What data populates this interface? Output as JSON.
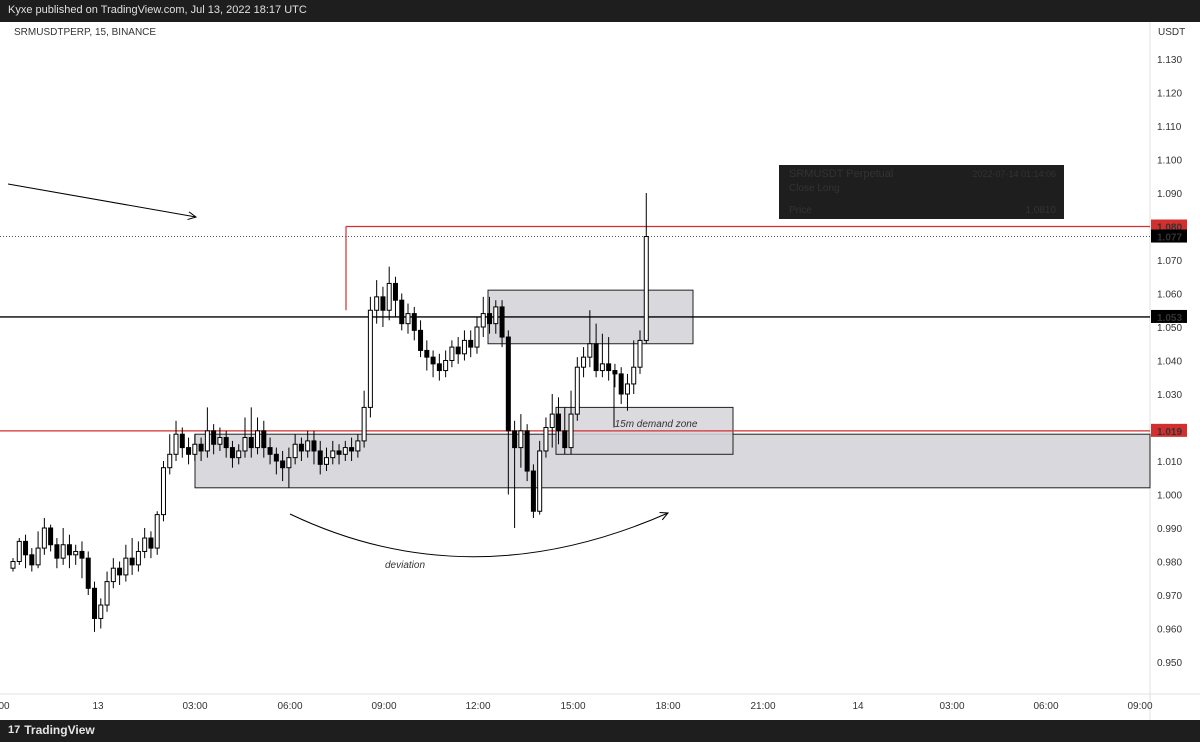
{
  "header": {
    "published": "Kyxe published on TradingView.com, Jul 13, 2022 18:17 UTC"
  },
  "footer": {
    "brand": "TradingView",
    "brand_icon": "tradingview-logo-icon"
  },
  "chart_data": {
    "type": "candlestick",
    "symbol_label": "SRMUSDTPERP, 15, BINANCE",
    "currency": "USDT",
    "ylim": [
      0.94,
      1.14
    ],
    "y_ticks": [
      "1.130",
      "1.120",
      "1.110",
      "1.100",
      "1.090",
      "1.080",
      "1.070",
      "1.060",
      "1.050",
      "1.040",
      "1.030",
      "1.020",
      "1.010",
      "1.000",
      "0.990",
      "0.980",
      "0.970",
      "0.960",
      "0.950"
    ],
    "x_ticks": [
      "00",
      "13",
      "03:00",
      "06:00",
      "09:00",
      "12:00",
      "15:00",
      "18:00",
      "21:00",
      "14",
      "03:00",
      "06:00",
      "09:00"
    ],
    "candles": [
      [
        0.978,
        0.98,
        0.977,
        0.981
      ],
      [
        0.98,
        0.986,
        0.979,
        0.987
      ],
      [
        0.986,
        0.982,
        0.978,
        0.988
      ],
      [
        0.982,
        0.979,
        0.977,
        0.984
      ],
      [
        0.979,
        0.984,
        0.978,
        0.989
      ],
      [
        0.984,
        0.99,
        0.982,
        0.993
      ],
      [
        0.99,
        0.985,
        0.983,
        0.991
      ],
      [
        0.985,
        0.981,
        0.978,
        0.987
      ],
      [
        0.981,
        0.985,
        0.979,
        0.99
      ],
      [
        0.985,
        0.982,
        0.978,
        0.988
      ],
      [
        0.982,
        0.983,
        0.979,
        0.985
      ],
      [
        0.983,
        0.981,
        0.975,
        0.986
      ],
      [
        0.981,
        0.972,
        0.97,
        0.983
      ],
      [
        0.972,
        0.963,
        0.959,
        0.974
      ],
      [
        0.963,
        0.967,
        0.96,
        0.969
      ],
      [
        0.967,
        0.974,
        0.965,
        0.977
      ],
      [
        0.974,
        0.978,
        0.972,
        0.981
      ],
      [
        0.978,
        0.976,
        0.973,
        0.98
      ],
      [
        0.976,
        0.981,
        0.974,
        0.985
      ],
      [
        0.981,
        0.979,
        0.976,
        0.987
      ],
      [
        0.979,
        0.983,
        0.977,
        0.986
      ],
      [
        0.983,
        0.987,
        0.981,
        0.99
      ],
      [
        0.987,
        0.984,
        0.981,
        0.989
      ],
      [
        0.984,
        0.994,
        0.982,
        0.995
      ],
      [
        0.994,
        1.008,
        0.992,
        1.01
      ],
      [
        1.008,
        1.012,
        1.006,
        1.018
      ],
      [
        1.012,
        1.018,
        1.01,
        1.022
      ],
      [
        1.018,
        1.014,
        1.011,
        1.02
      ],
      [
        1.014,
        1.012,
        1.009,
        1.017
      ],
      [
        1.012,
        1.015,
        1.01,
        1.018
      ],
      [
        1.015,
        1.013,
        1.01,
        1.017
      ],
      [
        1.013,
        1.019,
        1.011,
        1.026
      ],
      [
        1.019,
        1.015,
        1.012,
        1.021
      ],
      [
        1.015,
        1.017,
        1.013,
        1.02
      ],
      [
        1.017,
        1.014,
        1.011,
        1.019
      ],
      [
        1.014,
        1.011,
        1.008,
        1.016
      ],
      [
        1.011,
        1.013,
        1.009,
        1.015
      ],
      [
        1.013,
        1.017,
        1.011,
        1.023
      ],
      [
        1.017,
        1.014,
        1.011,
        1.026
      ],
      [
        1.014,
        1.019,
        1.012,
        1.023
      ],
      [
        1.019,
        1.014,
        1.011,
        1.022
      ],
      [
        1.014,
        1.012,
        1.009,
        1.017
      ],
      [
        1.012,
        1.01,
        1.006,
        1.014
      ],
      [
        1.01,
        1.008,
        1.004,
        1.013
      ],
      [
        1.008,
        1.011,
        1.002,
        1.014
      ],
      [
        1.011,
        1.015,
        1.009,
        1.018
      ],
      [
        1.015,
        1.013,
        1.01,
        1.017
      ],
      [
        1.013,
        1.016,
        1.011,
        1.019
      ],
      [
        1.016,
        1.013,
        1.009,
        1.019
      ],
      [
        1.013,
        1.009,
        1.006,
        1.016
      ],
      [
        1.009,
        1.011,
        1.007,
        1.014
      ],
      [
        1.011,
        1.013,
        1.009,
        1.016
      ],
      [
        1.013,
        1.012,
        1.009,
        1.015
      ],
      [
        1.012,
        1.014,
        1.01,
        1.016
      ],
      [
        1.014,
        1.013,
        1.01,
        1.017
      ],
      [
        1.013,
        1.016,
        1.011,
        1.018
      ],
      [
        1.016,
        1.026,
        1.014,
        1.031
      ],
      [
        1.026,
        1.055,
        1.023,
        1.059
      ],
      [
        1.055,
        1.059,
        1.051,
        1.064
      ],
      [
        1.059,
        1.055,
        1.05,
        1.062
      ],
      [
        1.055,
        1.063,
        1.052,
        1.068
      ],
      [
        1.063,
        1.058,
        1.053,
        1.065
      ],
      [
        1.058,
        1.051,
        1.049,
        1.06
      ],
      [
        1.051,
        1.054,
        1.048,
        1.057
      ],
      [
        1.054,
        1.049,
        1.046,
        1.056
      ],
      [
        1.049,
        1.043,
        1.041,
        1.052
      ],
      [
        1.043,
        1.041,
        1.037,
        1.046
      ],
      [
        1.041,
        1.039,
        1.035,
        1.043
      ],
      [
        1.039,
        1.037,
        1.034,
        1.042
      ],
      [
        1.037,
        1.04,
        1.035,
        1.043
      ],
      [
        1.04,
        1.044,
        1.038,
        1.046
      ],
      [
        1.044,
        1.042,
        1.039,
        1.047
      ],
      [
        1.042,
        1.046,
        1.04,
        1.049
      ],
      [
        1.046,
        1.044,
        1.041,
        1.049
      ],
      [
        1.044,
        1.05,
        1.042,
        1.053
      ],
      [
        1.05,
        1.054,
        1.047,
        1.059
      ],
      [
        1.054,
        1.051,
        1.048,
        1.059
      ],
      [
        1.051,
        1.056,
        1.048,
        1.058
      ],
      [
        1.056,
        1.047,
        1.044,
        1.058
      ],
      [
        1.047,
        1.019,
        1.0,
        1.049
      ],
      [
        1.019,
        1.014,
        0.99,
        1.022
      ],
      [
        1.014,
        1.019,
        1.008,
        1.024
      ],
      [
        1.019,
        1.007,
        1.004,
        1.021
      ],
      [
        1.007,
        0.995,
        0.993,
        1.009
      ],
      [
        0.995,
        1.013,
        0.994,
        1.016
      ],
      [
        1.013,
        1.02,
        1.011,
        1.023
      ],
      [
        1.02,
        1.024,
        1.014,
        1.03
      ],
      [
        1.024,
        1.019,
        1.015,
        1.029
      ],
      [
        1.019,
        1.014,
        1.012,
        1.026
      ],
      [
        1.014,
        1.024,
        1.012,
        1.031
      ],
      [
        1.024,
        1.038,
        1.022,
        1.041
      ],
      [
        1.038,
        1.041,
        1.035,
        1.044
      ],
      [
        1.041,
        1.045,
        1.038,
        1.055
      ],
      [
        1.045,
        1.037,
        1.035,
        1.051
      ],
      [
        1.037,
        1.039,
        1.035,
        1.048
      ],
      [
        1.039,
        1.037,
        1.034,
        1.047
      ],
      [
        1.037,
        1.036,
        1.032,
        1.039
      ],
      [
        1.036,
        1.03,
        1.027,
        1.038
      ],
      [
        1.03,
        1.033,
        1.025,
        1.036
      ],
      [
        1.033,
        1.038,
        1.03,
        1.046
      ],
      [
        1.038,
        1.046,
        1.036,
        1.049
      ],
      [
        1.046,
        1.077,
        1.045,
        1.09
      ]
    ],
    "horizontal_lines": [
      {
        "value": 1.08,
        "color": "#d32f2f",
        "label": "1.080"
      },
      {
        "value": 1.077,
        "color": "#555555",
        "style": "dotted",
        "label": "1.077"
      },
      {
        "value": 1.053,
        "color": "#000000",
        "label": "1.053"
      },
      {
        "value": 1.019,
        "color": "#d32f2f",
        "label": "1.019"
      }
    ],
    "zones": [
      {
        "name": "upper-supply-zone",
        "y_top": 1.061,
        "y_bottom": 1.045
      },
      {
        "name": "large-demand-zone",
        "y_top": 1.018,
        "y_bottom": 1.002
      },
      {
        "name": "15m-demand-zone",
        "y_top": 1.026,
        "y_bottom": 1.012
      }
    ],
    "annotations": {
      "demand_zone_label": "15m demand zone",
      "deviation_label": "deviation"
    },
    "info_box": {
      "title": "SRMUSDT Perpetual",
      "timestamp": "2022-07-14 01:14:06",
      "action": "Close Long",
      "price_label": "Price",
      "price_value": "1.0810"
    },
    "colors": {
      "up_candle": "#ffffff",
      "down_candle": "#000000",
      "red_line": "#d32f2f",
      "zone_fill": "#d4d4d9",
      "info_box_bg": "#1e1e1e",
      "action_color": "#ef5350"
    }
  }
}
